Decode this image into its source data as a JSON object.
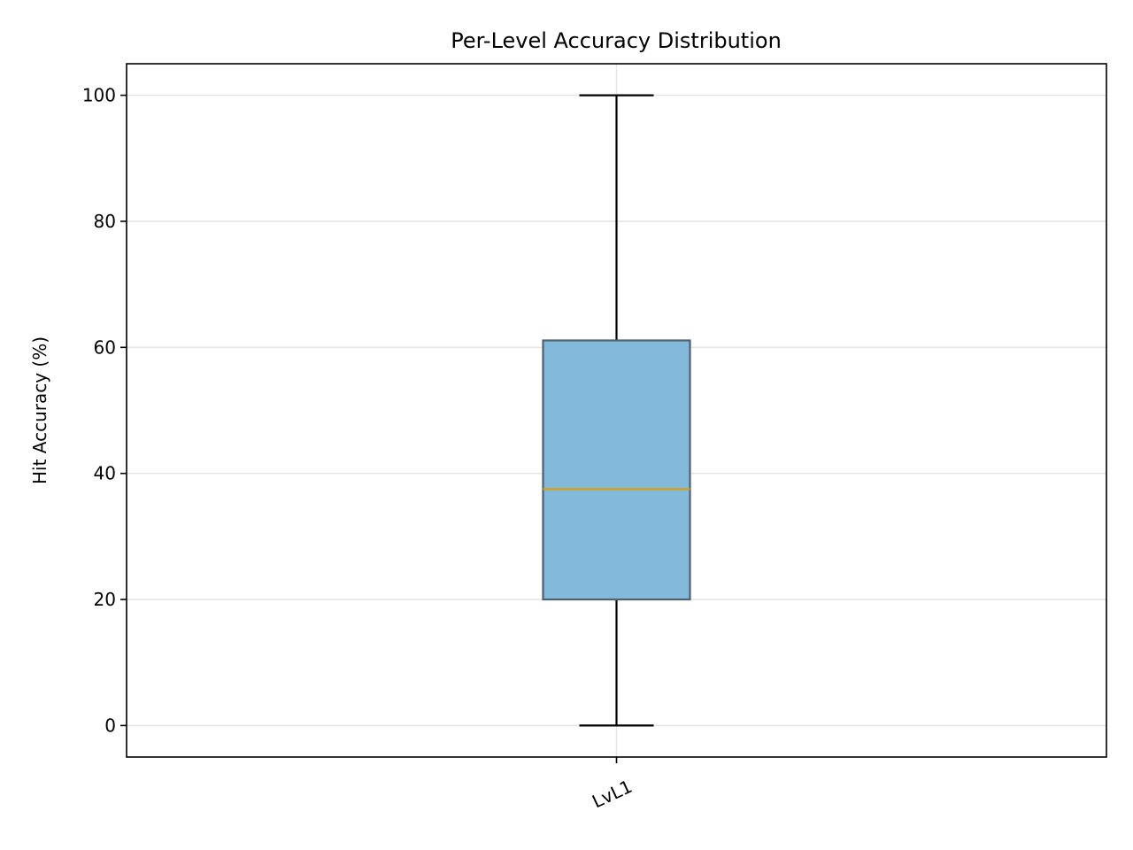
{
  "chart_data": {
    "type": "box",
    "title": "Per-Level Accuracy Distribution",
    "xlabel": "",
    "ylabel": "Hit Accuracy (%)",
    "categories": [
      "LvL1"
    ],
    "boxes": [
      {
        "category": "LvL1",
        "whisker_low": 0,
        "q1": 20,
        "median": 37.5,
        "q3": 61.1,
        "whisker_high": 100
      }
    ],
    "ylim": [
      -5,
      105
    ],
    "yticks": [
      0,
      20,
      40,
      60,
      80,
      100
    ],
    "grid": true,
    "colors": {
      "box_fill": "#7fb7d9",
      "box_edge": "#4f6272",
      "median": "#d4a017",
      "whisker": "#000000",
      "grid": "#e6e6e6",
      "axis": "#000000"
    }
  }
}
